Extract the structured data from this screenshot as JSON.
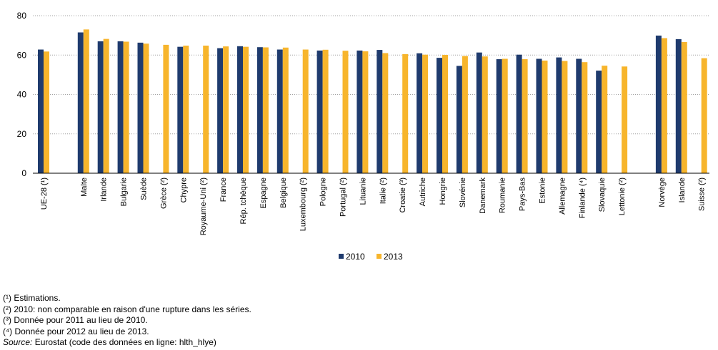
{
  "chart_data": {
    "type": "bar",
    "categories": [
      "UE-28 (¹)",
      "Malte",
      "Irlande",
      "Bulgarie",
      "Suède",
      "Grèce (²)",
      "Chypre",
      "Royaume-Uni (²)",
      "France",
      "Rép. tchèque",
      "Espagne",
      "Belgique",
      "Luxembourg (²)",
      "Pologne",
      "Portugal (²)",
      "Lituanie",
      "Italie (²)",
      "Croatie (³)",
      "Autriche",
      "Hongrie",
      "Slovénie",
      "Danemark",
      "Roumanie",
      "Pays-Bas",
      "Estonie",
      "Allemagne",
      "Finlande (⁴)",
      "Slovaquie",
      "Lettonie (²)",
      "Norvège",
      "Islande",
      "Suisse (²)"
    ],
    "series": [
      {
        "name": "2010",
        "color": "#1f3b6e",
        "values": [
          62.8,
          71.5,
          67.0,
          67.0,
          66.3,
          null,
          64.2,
          null,
          63.5,
          64.5,
          64.0,
          62.8,
          null,
          62.3,
          null,
          62.3,
          62.6,
          null,
          60.9,
          58.6,
          54.5,
          61.3,
          57.9,
          60.2,
          58.1,
          58.8,
          58.1,
          52.1,
          null,
          69.9,
          68.1,
          null
        ]
      },
      {
        "name": "2013",
        "color": "#f7b52c",
        "values": [
          61.8,
          73.0,
          68.2,
          66.8,
          65.8,
          65.2,
          64.8,
          64.8,
          64.4,
          64.2,
          63.9,
          63.8,
          62.8,
          62.7,
          62.2,
          61.9,
          61.0,
          60.5,
          60.2,
          60.1,
          59.5,
          59.3,
          58.1,
          57.9,
          57.2,
          57.0,
          56.4,
          54.6,
          54.2,
          68.6,
          66.6,
          58.4
        ]
      }
    ],
    "y_ticks": [
      "0",
      "20",
      "40",
      "60",
      "80"
    ],
    "ylim": [
      0,
      80
    ],
    "grid": true,
    "legend": "bottom-center",
    "title": "",
    "xlabel": "",
    "ylabel": ""
  },
  "notes": [
    "(¹) Estimations.",
    "(²) 2010: non comparable en raison d'une rupture dans les séries.",
    "(³) Donnée pour 2011 au lieu de 2010.",
    "(⁴) Donnée pour 2012 au lieu de 2013."
  ],
  "source": {
    "label": "Source:",
    "text": "Eurostat (code des données en ligne: hlth_hlye)"
  }
}
